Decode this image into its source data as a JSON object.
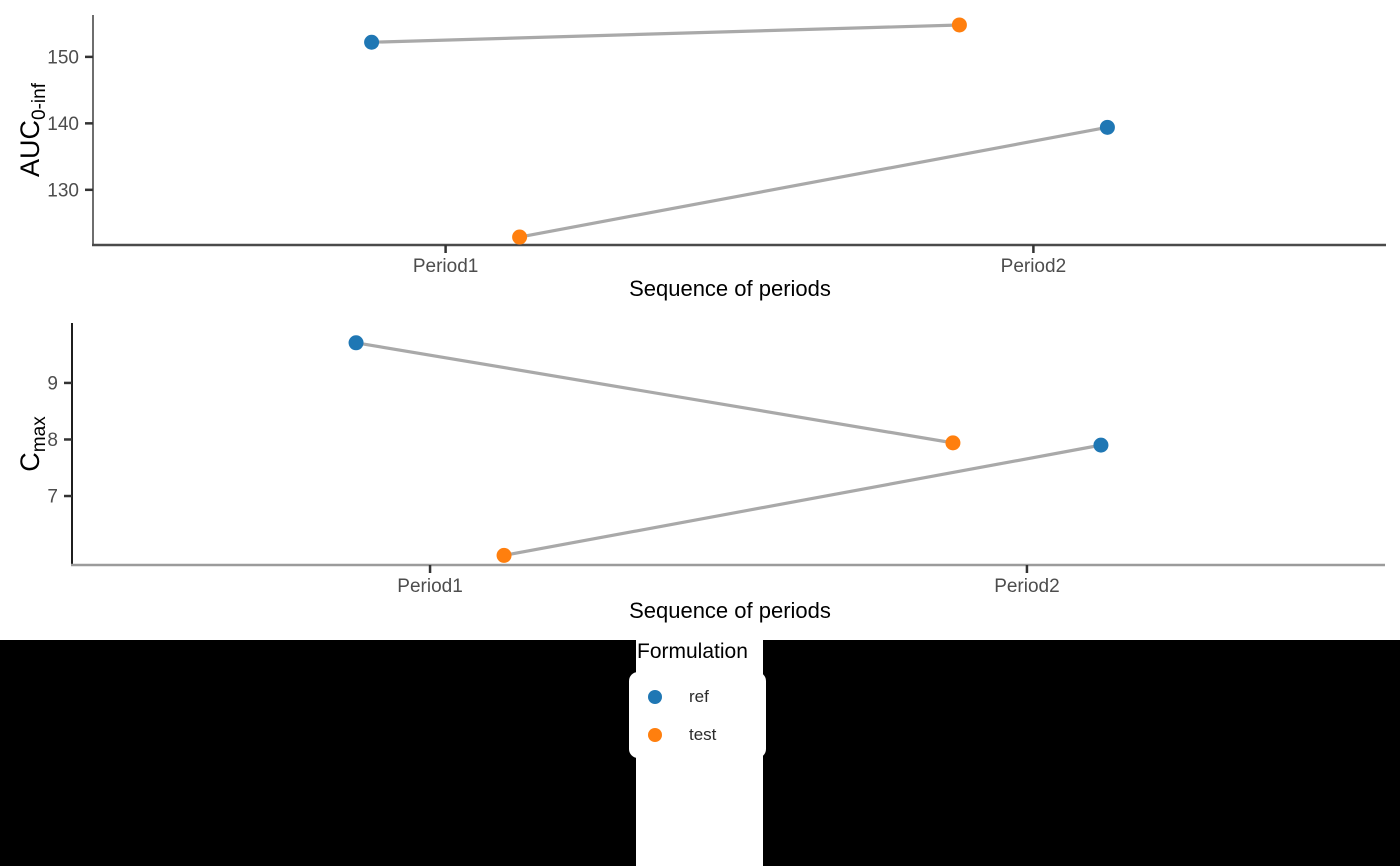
{
  "figure": {
    "background": "#ffffff",
    "band_color": "#000000",
    "legend_background": "#ffffff"
  },
  "chart_data": {
    "type": "line",
    "title": "",
    "categories": [
      "Period1",
      "Period2"
    ],
    "xlabel": "Sequence of periods",
    "legend": {
      "title": "Formulation",
      "position": "bottom-center",
      "entries": [
        {
          "label": "ref",
          "color": "#1f77b4"
        },
        {
          "label": "test",
          "color": "#ff7f0e"
        }
      ]
    },
    "series_colors": {
      "ref": "#1f77b4",
      "test": "#ff7f0e"
    },
    "line_color": "#a9a9a9",
    "tick_text_color": "#4d4d4d",
    "tick_mark_color": "#333333",
    "panels": [
      {
        "ylabel_base": "AUC",
        "ylabel_sub": "0-inf",
        "yticks": [
          130,
          140,
          150
        ],
        "ylim": [
          121.7,
          156.3
        ],
        "grid": false,
        "points": [
          {
            "formulation": "ref",
            "period": "Period1",
            "value": 152.2,
            "slot": "left"
          },
          {
            "formulation": "test",
            "period": "Period2",
            "value": 154.8,
            "slot": "left"
          },
          {
            "formulation": "test",
            "period": "Period1",
            "value": 122.9,
            "slot": "right"
          },
          {
            "formulation": "ref",
            "period": "Period2",
            "value": 139.4,
            "slot": "right"
          }
        ],
        "connections": [
          [
            0,
            1
          ],
          [
            2,
            3
          ]
        ]
      },
      {
        "ylabel_base": "C",
        "ylabel_sub": "max",
        "yticks": [
          7,
          8,
          9
        ],
        "ylim": [
          5.78,
          10.06
        ],
        "grid": false,
        "points": [
          {
            "formulation": "ref",
            "period": "Period1",
            "value": 9.71,
            "slot": "left"
          },
          {
            "formulation": "test",
            "period": "Period2",
            "value": 7.94,
            "slot": "left"
          },
          {
            "formulation": "test",
            "period": "Period1",
            "value": 5.95,
            "slot": "right"
          },
          {
            "formulation": "ref",
            "period": "Period2",
            "value": 7.9,
            "slot": "right"
          }
        ],
        "connections": [
          [
            0,
            1
          ],
          [
            2,
            3
          ]
        ]
      }
    ]
  }
}
